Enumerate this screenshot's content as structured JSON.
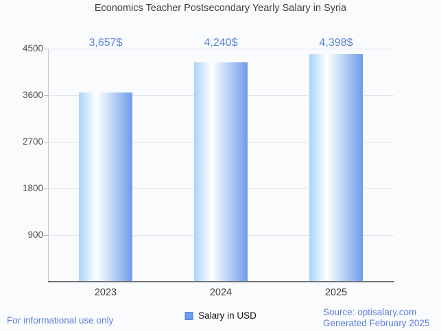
{
  "title": "Economics Teacher Postsecondary Yearly Salary in Syria",
  "chart_data": {
    "type": "bar",
    "categories": [
      "2023",
      "2024",
      "2025"
    ],
    "values": [
      3657,
      4240,
      4398
    ],
    "value_labels": [
      "3,657$",
      "4,240$",
      "4,398$"
    ],
    "series": [
      {
        "name": "Salary in USD",
        "values": [
          3657,
          4240,
          4398
        ]
      }
    ],
    "title": "Economics Teacher Postsecondary Yearly Salary in Syria",
    "xlabel": "",
    "ylabel": "",
    "ylim": [
      0,
      4500
    ],
    "yticks": [
      900,
      1800,
      2700,
      3600,
      4500
    ],
    "grid": true,
    "legend_position": "bottom"
  },
  "legend": {
    "label": "Salary in USD"
  },
  "footer": {
    "disclaimer": "For informational use only",
    "source": "Source: optisalary.com",
    "generated": "Generated February 2025"
  },
  "colors": {
    "bar_gradient_left": "#aad4f9",
    "bar_gradient_mid": "#ffffff",
    "bar_gradient_right": "#6d9ceb",
    "value_label_text": "#5b82d8",
    "footer_text": "#5b7ed9",
    "grid_line": "#e2e4e9",
    "axis_line": "#717477",
    "background": "#fafbfd"
  }
}
